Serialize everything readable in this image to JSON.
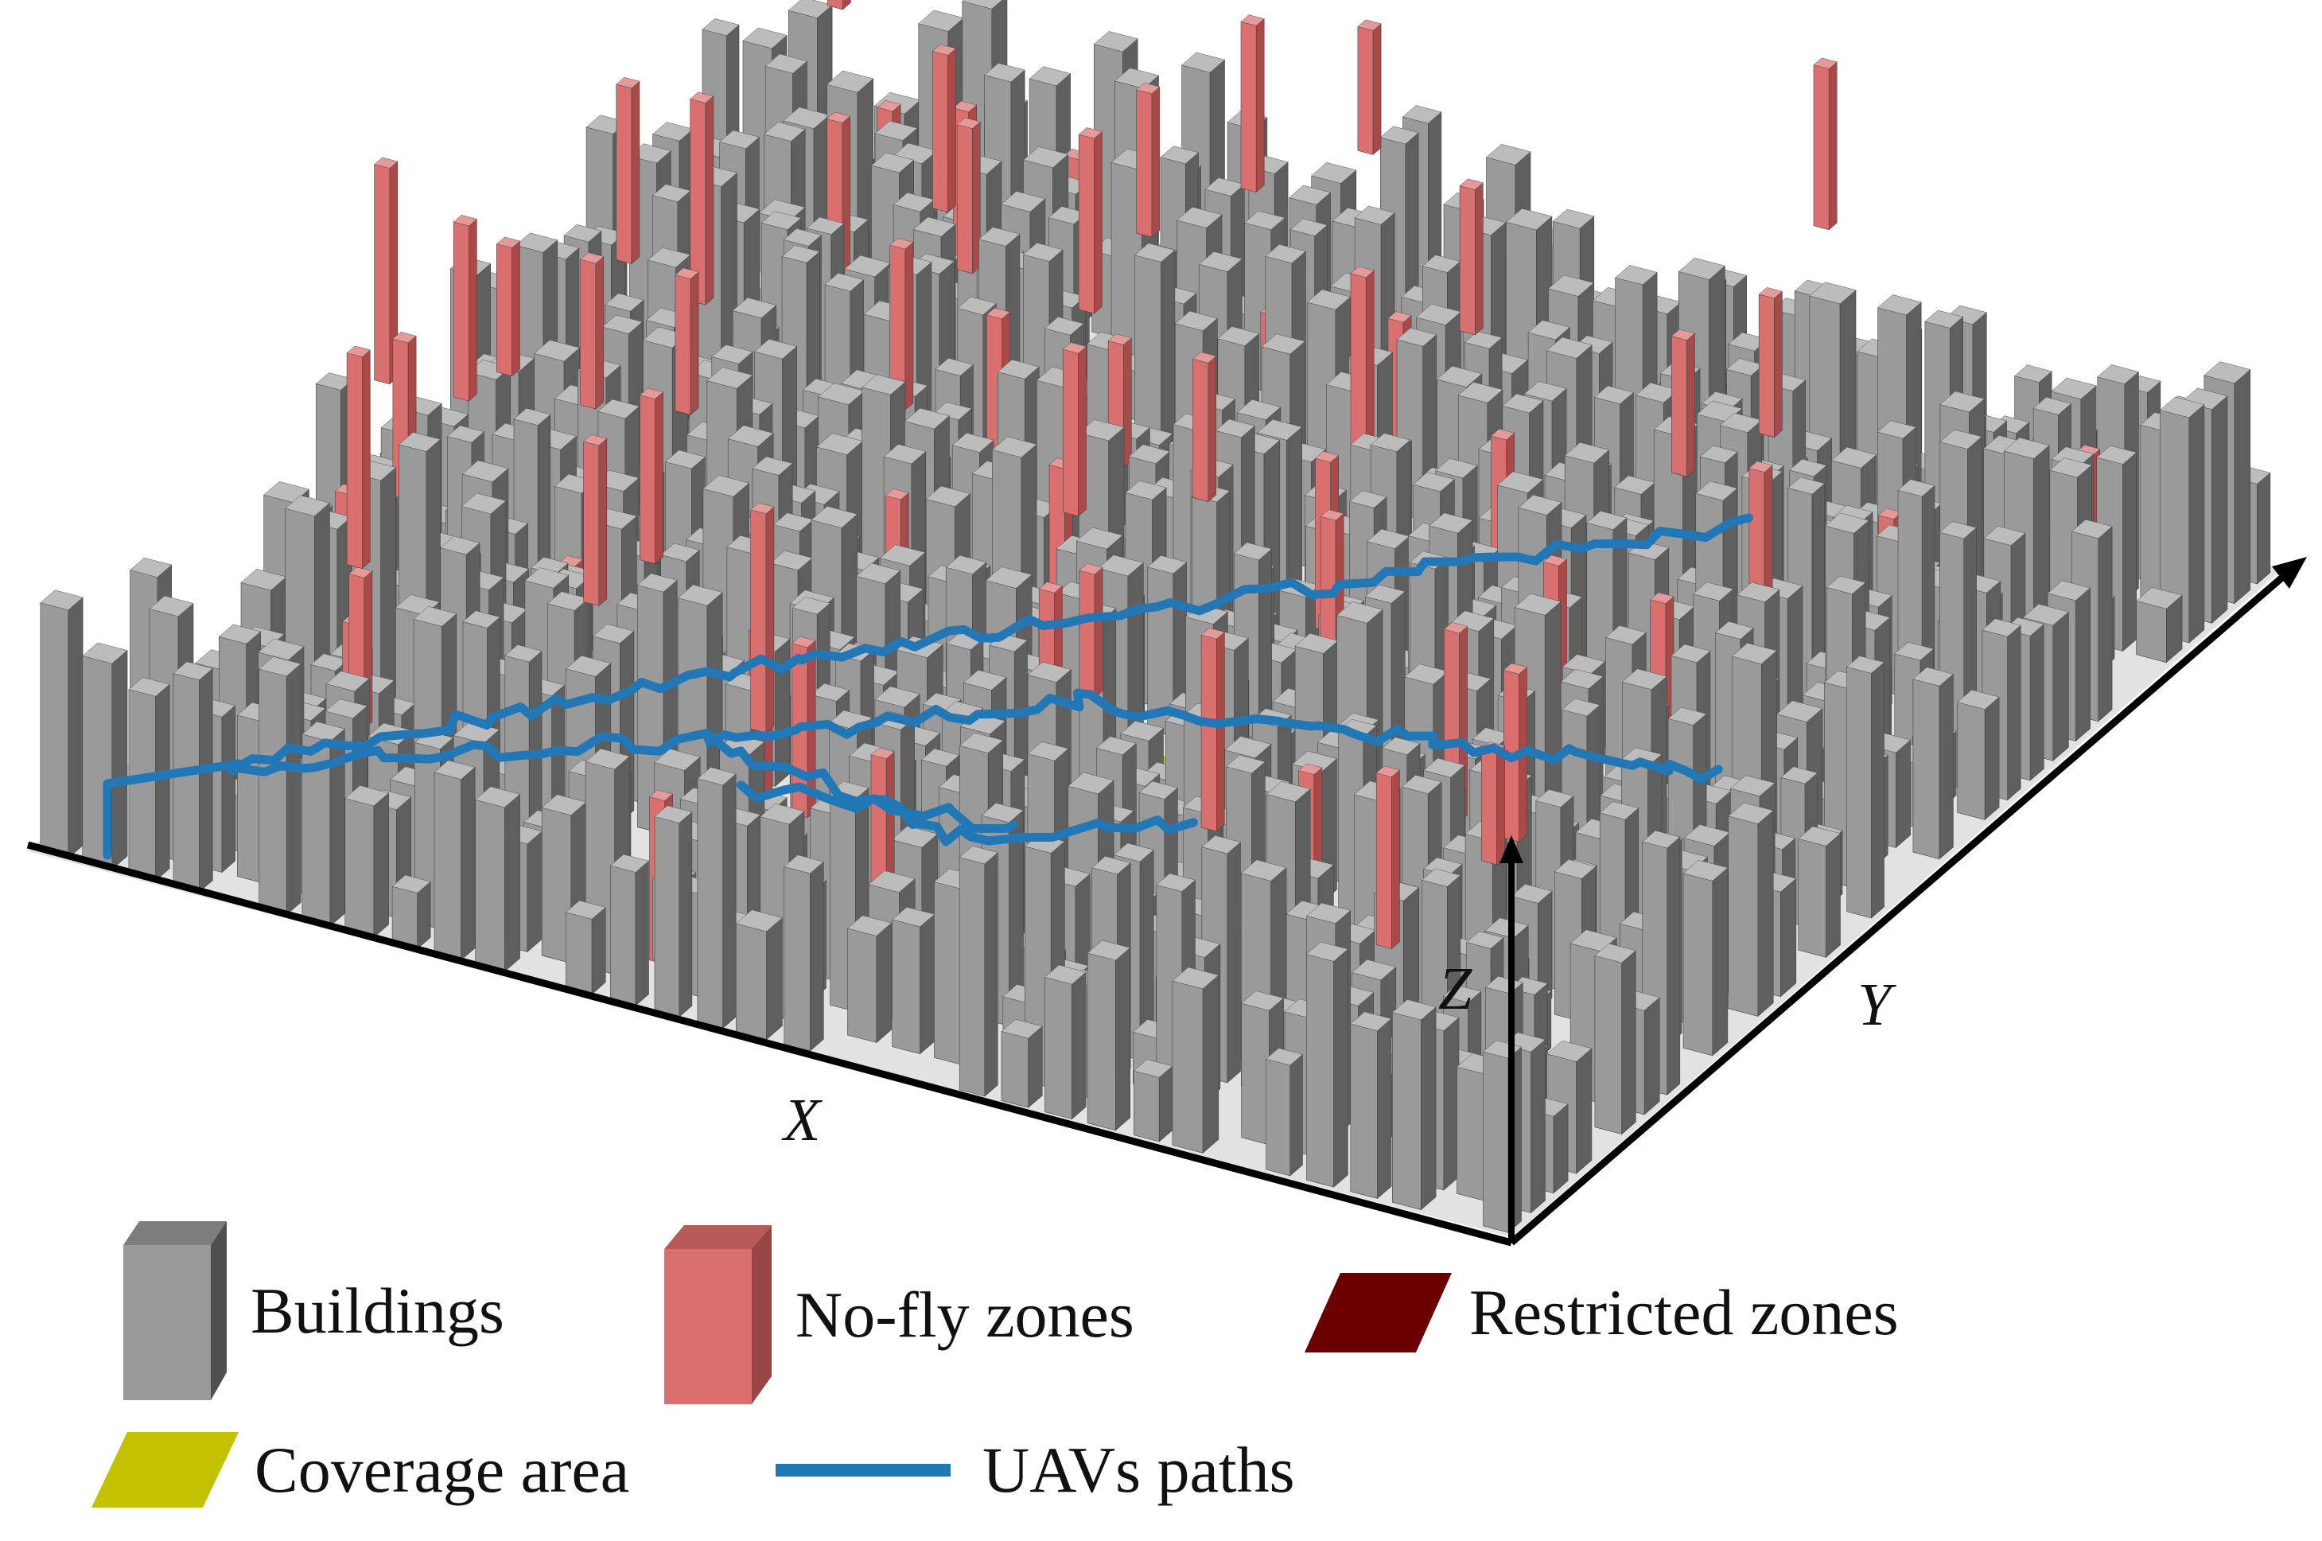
{
  "figure": {
    "axes": {
      "x": "X",
      "y": "Y",
      "z": "Z"
    },
    "legend": [
      {
        "key": "buildings",
        "label": "Buildings",
        "color": "#9a9a9a"
      },
      {
        "key": "no_fly",
        "label": "No-fly zones",
        "color": "#d9706f"
      },
      {
        "key": "restricted",
        "label": "Restricted zones",
        "color": "#6b0000"
      },
      {
        "key": "coverage",
        "label": "Coverage area",
        "color": "#c2c200"
      },
      {
        "key": "paths",
        "label": "UAVs paths",
        "color": "#2277b7"
      }
    ],
    "colors": {
      "building_front": "#9a9a9a",
      "building_side": "#5f5f5f",
      "building_top": "#bcbcbc",
      "nofly_front": "#d9706f",
      "nofly_side": "#a94a4a",
      "nofly_top": "#e59a99",
      "ground": "#e2e2e2",
      "axis": "#000000",
      "path": "#2277b7",
      "coverage": "#c2c200",
      "restricted": "#6b0000"
    }
  }
}
